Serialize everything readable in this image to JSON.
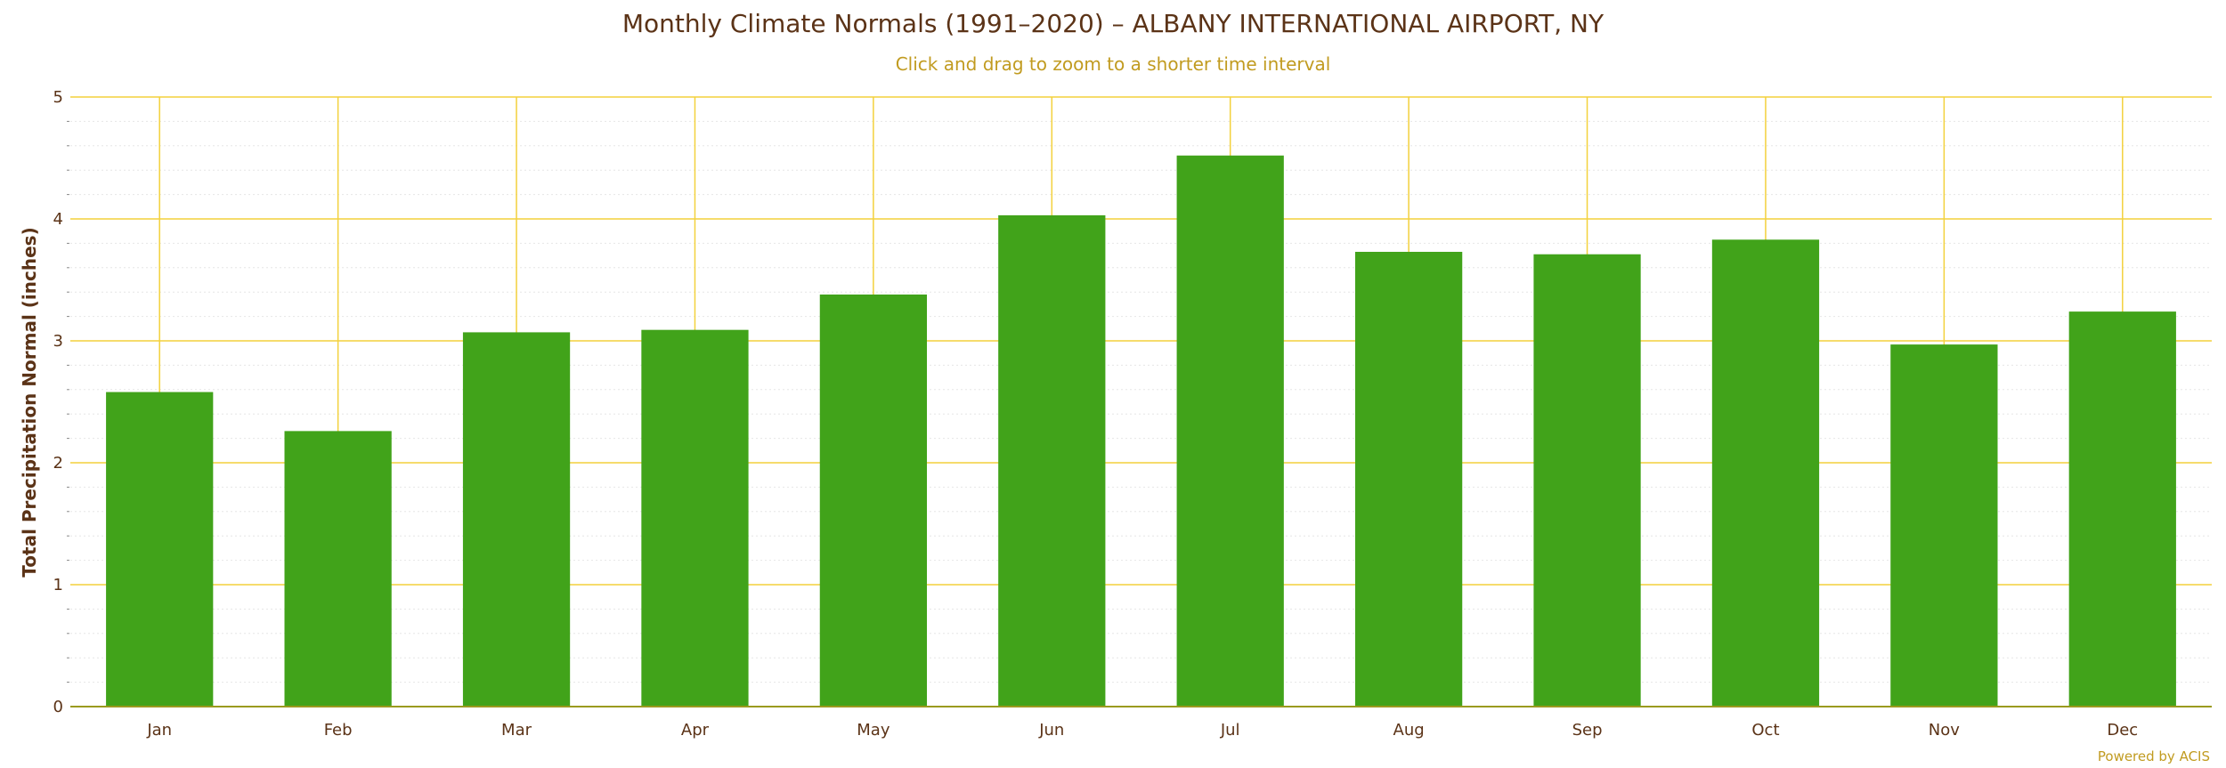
{
  "chart_data": {
    "type": "bar",
    "title": "Monthly Climate Normals (1991–2020) – ALBANY INTERNATIONAL AIRPORT, NY",
    "subtitle": "Click and drag to zoom to a shorter time interval",
    "ylabel": "Total Precipitation Normal (inches)",
    "xlabel": "",
    "categories": [
      "Jan",
      "Feb",
      "Mar",
      "Apr",
      "May",
      "Jun",
      "Jul",
      "Aug",
      "Sep",
      "Oct",
      "Nov",
      "Dec"
    ],
    "values": [
      2.58,
      2.26,
      3.07,
      3.09,
      3.38,
      4.03,
      4.52,
      3.73,
      3.71,
      3.83,
      2.97,
      3.24
    ],
    "ylim": [
      0,
      5
    ],
    "yticks": [
      "0",
      "1",
      "2",
      "3",
      "4",
      "5"
    ],
    "grid": true,
    "legend": "none",
    "credit": "Powered by ACIS",
    "colors": {
      "bar": "#41a31a",
      "grid": "#f3d13c",
      "axis": "#9a9a1f",
      "minor_grid": "#e6e6e6",
      "text": "#5b3317",
      "accent": "#c19b20"
    }
  }
}
